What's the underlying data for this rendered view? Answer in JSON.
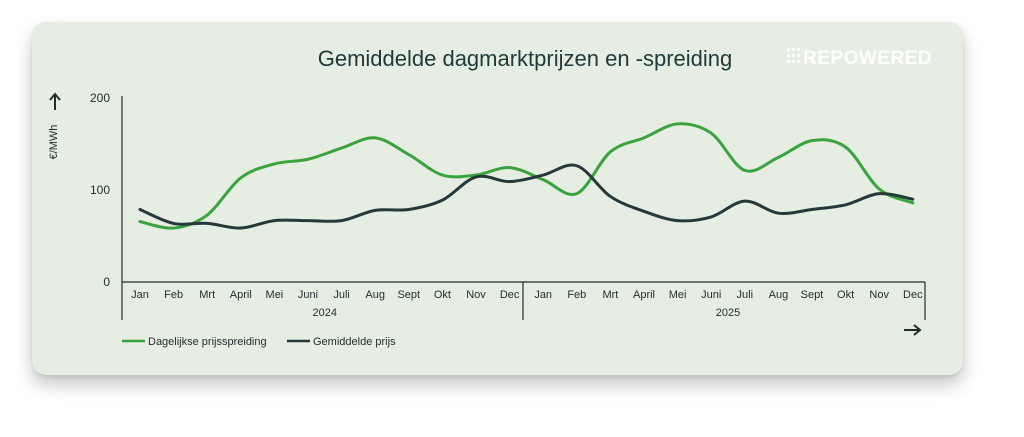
{
  "chart_data": {
    "type": "line",
    "title": "Gemiddelde dagmarktprijzen en -spreiding",
    "ylabel": "€/MWh",
    "ylim": [
      0,
      200
    ],
    "yticks": [
      "0",
      "100",
      "200"
    ],
    "categories": [
      "Jan",
      "Feb",
      "Mrt",
      "April",
      "Mei",
      "Juni",
      "Juli",
      "Aug",
      "Sept",
      "Okt",
      "Nov",
      "Dec",
      "Jan",
      "Feb",
      "Mrt",
      "April",
      "Mei",
      "Juni",
      "Juli",
      "Aug",
      "Sept",
      "Okt",
      "Nov",
      "Dec"
    ],
    "years": [
      {
        "label": "2024",
        "from": 0,
        "to": 11
      },
      {
        "label": "2025",
        "from": 12,
        "to": 23
      }
    ],
    "legend_position": "bottom-left",
    "grid": false,
    "series": [
      {
        "name": "Dagelijkse prijsspreiding",
        "color": "#3aa33e",
        "values": [
          65,
          58,
          72,
          112,
          127,
          132,
          144,
          155,
          137,
          115,
          115,
          123,
          110,
          95,
          140,
          155,
          170,
          160,
          120,
          134,
          152,
          145,
          100,
          85
        ]
      },
      {
        "name": "Gemiddelde prijs",
        "color": "#25393a",
        "values": [
          78,
          63,
          63,
          58,
          66,
          66,
          66,
          77,
          78,
          88,
          113,
          108,
          115,
          125,
          92,
          76,
          66,
          70,
          87,
          74,
          78,
          83,
          95,
          89
        ]
      }
    ]
  },
  "brand": {
    "logo_text": "REPOWERED",
    "colors": {
      "card": "#e6ede3",
      "green": "#3aa33e",
      "dark": "#25393a"
    }
  },
  "icons": {
    "y_axis_arrow": "arrow-up-icon",
    "x_axis_arrow": "arrow-right-icon"
  }
}
